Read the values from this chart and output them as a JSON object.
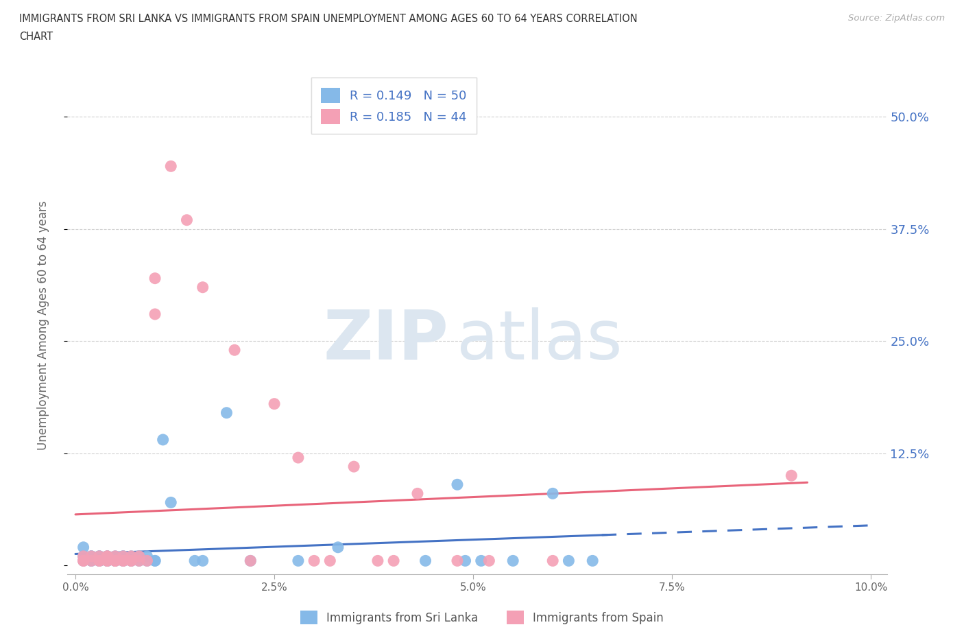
{
  "title_line1": "IMMIGRANTS FROM SRI LANKA VS IMMIGRANTS FROM SPAIN UNEMPLOYMENT AMONG AGES 60 TO 64 YEARS CORRELATION",
  "title_line2": "CHART",
  "source_text": "Source: ZipAtlas.com",
  "ylabel": "Unemployment Among Ages 60 to 64 years",
  "xlim": [
    -0.001,
    0.102
  ],
  "ylim": [
    -0.01,
    0.545
  ],
  "yticks_right": [
    0.0,
    0.125,
    0.25,
    0.375,
    0.5
  ],
  "ytick_labels_right": [
    "",
    "12.5%",
    "25.0%",
    "37.5%",
    "50.0%"
  ],
  "xticks": [
    0.0,
    0.025,
    0.05,
    0.075,
    0.1
  ],
  "xtick_labels": [
    "0.0%",
    "2.5%",
    "5.0%",
    "7.5%",
    "10.0%"
  ],
  "sri_lanka_color": "#85b9e8",
  "spain_color": "#f4a0b5",
  "sri_lanka_line_color": "#4472c4",
  "spain_line_color": "#e8647a",
  "legend_r_sri": "R = 0.149",
  "legend_n_sri": "N = 50",
  "legend_r_spain": "R = 0.185",
  "legend_n_spain": "N = 44",
  "legend_label_sri": "Immigrants from Sri Lanka",
  "legend_label_spain": "Immigrants from Spain",
  "sri_lanka_x": [
    0.001,
    0.001,
    0.001,
    0.002,
    0.002,
    0.002,
    0.002,
    0.003,
    0.003,
    0.003,
    0.003,
    0.003,
    0.004,
    0.004,
    0.004,
    0.004,
    0.004,
    0.005,
    0.005,
    0.005,
    0.005,
    0.006,
    0.006,
    0.006,
    0.006,
    0.007,
    0.007,
    0.007,
    0.008,
    0.008,
    0.009,
    0.009,
    0.01,
    0.01,
    0.011,
    0.012,
    0.015,
    0.016,
    0.019,
    0.022,
    0.028,
    0.033,
    0.044,
    0.048,
    0.049,
    0.051,
    0.055,
    0.06,
    0.062,
    0.065
  ],
  "sri_lanka_y": [
    0.01,
    0.005,
    0.02,
    0.005,
    0.01,
    0.01,
    0.005,
    0.005,
    0.005,
    0.01,
    0.01,
    0.005,
    0.005,
    0.005,
    0.01,
    0.01,
    0.005,
    0.005,
    0.005,
    0.01,
    0.005,
    0.005,
    0.01,
    0.01,
    0.005,
    0.005,
    0.005,
    0.01,
    0.01,
    0.005,
    0.005,
    0.01,
    0.005,
    0.005,
    0.14,
    0.07,
    0.005,
    0.005,
    0.17,
    0.005,
    0.005,
    0.02,
    0.005,
    0.09,
    0.005,
    0.005,
    0.005,
    0.08,
    0.005,
    0.005
  ],
  "spain_x": [
    0.001,
    0.001,
    0.001,
    0.002,
    0.002,
    0.003,
    0.003,
    0.003,
    0.004,
    0.004,
    0.004,
    0.004,
    0.005,
    0.005,
    0.005,
    0.005,
    0.006,
    0.006,
    0.006,
    0.007,
    0.007,
    0.007,
    0.008,
    0.008,
    0.009,
    0.01,
    0.01,
    0.012,
    0.014,
    0.016,
    0.02,
    0.022,
    0.025,
    0.028,
    0.03,
    0.032,
    0.035,
    0.038,
    0.04,
    0.043,
    0.048,
    0.052,
    0.06,
    0.09
  ],
  "spain_y": [
    0.005,
    0.01,
    0.005,
    0.005,
    0.01,
    0.005,
    0.01,
    0.005,
    0.005,
    0.01,
    0.01,
    0.005,
    0.005,
    0.01,
    0.005,
    0.005,
    0.005,
    0.01,
    0.005,
    0.005,
    0.01,
    0.005,
    0.005,
    0.01,
    0.005,
    0.32,
    0.28,
    0.445,
    0.385,
    0.31,
    0.24,
    0.005,
    0.18,
    0.12,
    0.005,
    0.005,
    0.11,
    0.005,
    0.005,
    0.08,
    0.005,
    0.005,
    0.005,
    0.1
  ],
  "background_color": "#ffffff",
  "grid_color": "#cccccc",
  "watermark_color": "#dce6f0"
}
